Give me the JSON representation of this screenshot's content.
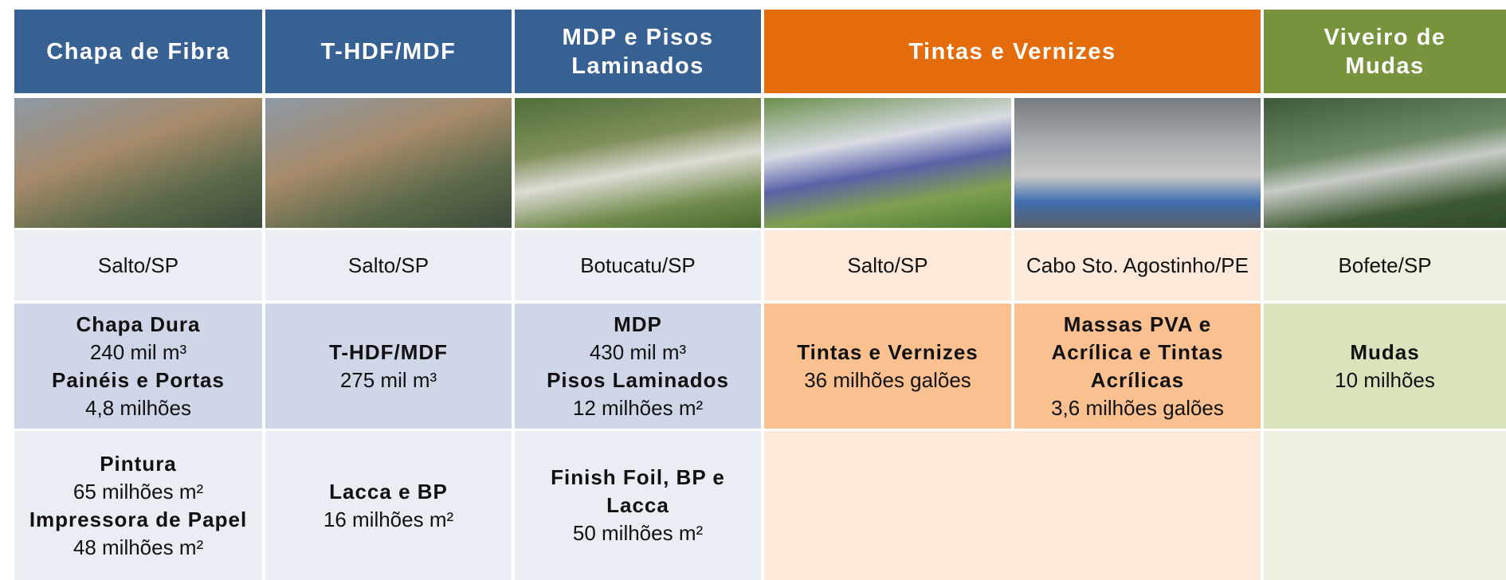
{
  "header": {
    "columns": [
      "Chapa de Fibra",
      "T-HDF/MDF",
      "MDP e Pisos Laminados",
      "Tintas e Vernizes",
      "Viveiro de Mudas"
    ]
  },
  "locations": [
    "Salto/SP",
    "Salto/SP",
    "Botucatu/SP",
    "Salto/SP",
    "Cabo Sto. Agostinho/PE",
    "Bofete/SP"
  ],
  "capacity": [
    [
      {
        "product": "Chapa Dura",
        "amount": "240 mil m³"
      },
      {
        "product": "Painéis e Portas",
        "amount": "4,8 milhões"
      }
    ],
    [
      {
        "product": "T-HDF/MDF",
        "amount": "275 mil m³"
      }
    ],
    [
      {
        "product": "MDP",
        "amount": "430 mil m³"
      },
      {
        "product": "Pisos Laminados",
        "amount": "12 milhões m²"
      }
    ],
    [
      {
        "product": "Tintas e Vernizes",
        "amount": "36 milhões galões"
      }
    ],
    [
      {
        "product": "Massas PVA e Acrílica e Tintas Acrílicas",
        "amount": "3,6 milhões galões"
      }
    ],
    [
      {
        "product": "Mudas",
        "amount": "10 milhões"
      }
    ]
  ],
  "finishing": [
    [
      {
        "product": "Pintura",
        "amount": "65 milhões m²"
      },
      {
        "product": "Impressora de Papel",
        "amount": "48 milhões m²"
      }
    ],
    [
      {
        "product": "Lacca e BP",
        "amount": "16 milhões m²"
      }
    ],
    [
      {
        "product": "Finish Foil, BP e Lacca",
        "amount": "50 milhões m²"
      }
    ]
  ]
}
